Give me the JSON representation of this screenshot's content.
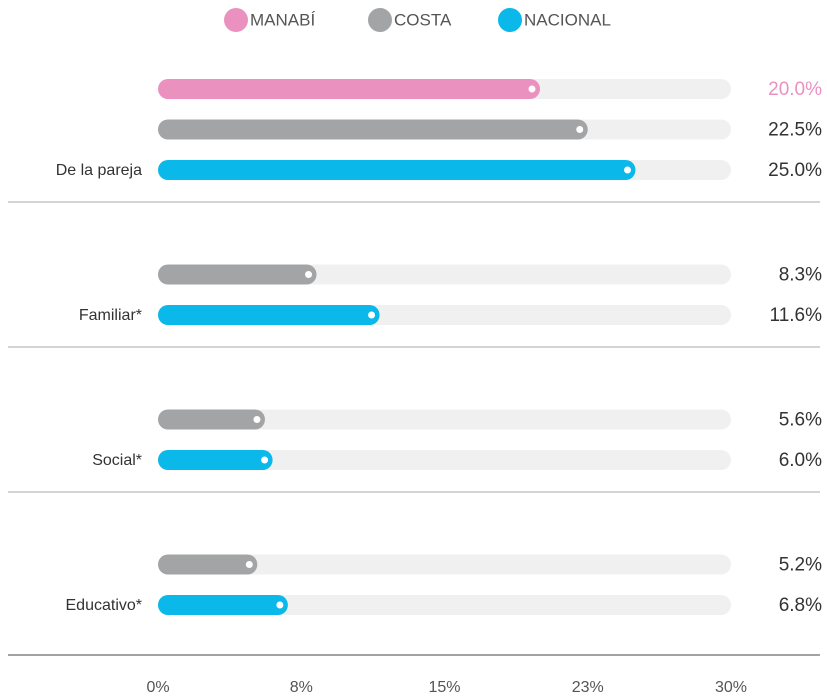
{
  "chart_data": {
    "type": "bar",
    "orientation": "horizontal",
    "categories": [
      "De la pareja",
      "Familiar*",
      "Social*",
      "Educativo*"
    ],
    "series": [
      {
        "name": "MANABÍ",
        "color": "#ea91c0",
        "values": [
          20.0,
          null,
          null,
          null
        ],
        "value_labels": [
          "20.0%",
          null,
          null,
          null
        ]
      },
      {
        "name": "COSTA",
        "color": "#a3a4a6",
        "values": [
          22.5,
          8.3,
          5.6,
          5.2
        ],
        "value_labels": [
          "22.5%",
          "8.3%",
          "5.6%",
          "5.2%"
        ]
      },
      {
        "name": "NACIONAL",
        "color": "#0bb8ea",
        "values": [
          25.0,
          11.6,
          6.0,
          6.8
        ],
        "value_labels": [
          "25.0%",
          "11.6%",
          "6.0%",
          "6.8%"
        ]
      }
    ],
    "xlim": [
      0,
      30
    ],
    "xticks": [
      {
        "value": 0,
        "label": "0%"
      },
      {
        "value": 7.5,
        "label": "8%"
      },
      {
        "value": 15,
        "label": "15%"
      },
      {
        "value": 22.5,
        "label": "23%"
      },
      {
        "value": 30,
        "label": "30%"
      }
    ],
    "legend": "top"
  }
}
